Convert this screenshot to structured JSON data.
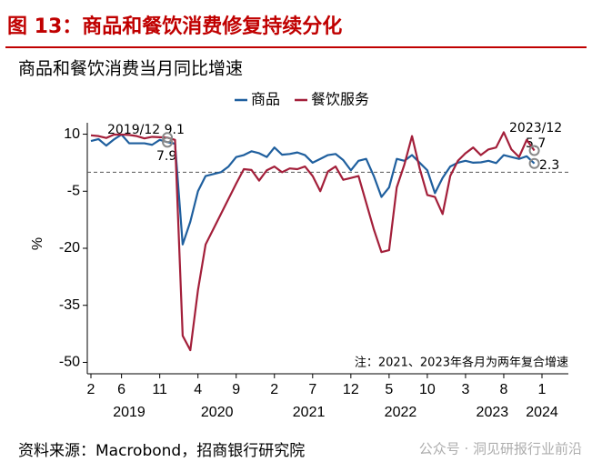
{
  "chart_data": {
    "type": "line",
    "header": "图 13：商品和餐饮消费修复持续分化",
    "title": "商品和餐饮消费当月同比增速",
    "y_label": "%",
    "note": "注：2021、2023年各月为两年复合增速",
    "source": "资料来源：Macrobond，招商银行研究院",
    "watermark": "公众号 · 洞见研报行业前沿",
    "annotations": [
      "2019/12 9.1",
      "7.9",
      "2023/12",
      "5.7",
      "2.3"
    ],
    "x": [
      "2019-02",
      "2019-03",
      "2019-04",
      "2019-05",
      "2019-06",
      "2019-07",
      "2019-08",
      "2019-09",
      "2019-10",
      "2019-11",
      "2019-12",
      "2020-01",
      "2020-02",
      "2020-03",
      "2020-04",
      "2020-05",
      "2020-06",
      "2020-07",
      "2020-08",
      "2020-09",
      "2020-10",
      "2020-11",
      "2020-12",
      "2021-01",
      "2021-02",
      "2021-03",
      "2021-04",
      "2021-05",
      "2021-06",
      "2021-07",
      "2021-08",
      "2021-09",
      "2021-10",
      "2021-11",
      "2021-12",
      "2022-01",
      "2022-02",
      "2022-03",
      "2022-04",
      "2022-05",
      "2022-06",
      "2022-07",
      "2022-08",
      "2022-09",
      "2022-10",
      "2022-11",
      "2022-12",
      "2023-01",
      "2023-02",
      "2023-03",
      "2023-04",
      "2023-05",
      "2023-06",
      "2023-07",
      "2023-08",
      "2023-09",
      "2023-10",
      "2023-11",
      "2023-12"
    ],
    "series": [
      {
        "name": "商品",
        "color": "#1f5f9e",
        "values": [
          8.2,
          8.7,
          7.0,
          8.6,
          9.9,
          7.6,
          7.6,
          7.6,
          7.2,
          8.5,
          7.9,
          7.5,
          -19.0,
          -13.0,
          -5.0,
          -1.0,
          -0.5,
          0.0,
          1.5,
          4.0,
          4.5,
          5.5,
          5.0,
          4.0,
          6.5,
          4.6,
          4.8,
          5.2,
          4.5,
          2.5,
          3.5,
          4.5,
          4.8,
          3.2,
          0.5,
          3.0,
          3.5,
          -1.0,
          -6.5,
          -4.0,
          3.5,
          3.0,
          4.5,
          2.5,
          0.5,
          -5.5,
          -1.5,
          1.5,
          2.5,
          3.0,
          2.5,
          2.6,
          3.0,
          2.4,
          4.5,
          4.0,
          3.5,
          4.2,
          2.3
        ]
      },
      {
        "name": "餐饮服务",
        "color": "#a31f3a",
        "values": [
          9.7,
          9.5,
          9.0,
          9.9,
          9.9,
          9.8,
          9.5,
          8.9,
          9.3,
          9.2,
          9.1,
          8.5,
          -43.0,
          -46.8,
          -31.0,
          -19.0,
          -15.0,
          -11.0,
          -7.0,
          -3.0,
          0.8,
          0.6,
          -2.2,
          0.5,
          1.5,
          0.0,
          1.0,
          0.8,
          1.5,
          -1.0,
          -5.0,
          0.2,
          1.5,
          -2.0,
          -1.5,
          -1.0,
          -8.0,
          -15.0,
          -21.0,
          -20.5,
          -4.0,
          2.0,
          9.5,
          1.0,
          -6.0,
          -6.5,
          -11.0,
          -1.0,
          3.0,
          5.0,
          6.5,
          4.5,
          6.0,
          6.5,
          10.5,
          6.0,
          4.0,
          8.5,
          5.7
        ]
      }
    ],
    "xlim": [
      "2019-02",
      "2024-01"
    ],
    "xticks": [
      {
        "value": "2019-02",
        "label": "2"
      },
      {
        "value": "2019-06",
        "label": "6"
      },
      {
        "value": "2019-11",
        "label": "11"
      },
      {
        "value": "2020-04",
        "label": "4"
      },
      {
        "value": "2020-09",
        "label": "9"
      },
      {
        "value": "2021-02",
        "label": "2"
      },
      {
        "value": "2021-07",
        "label": "7"
      },
      {
        "value": "2021-12",
        "label": "12"
      },
      {
        "value": "2022-05",
        "label": "5"
      },
      {
        "value": "2022-10",
        "label": "10"
      },
      {
        "value": "2023-03",
        "label": "3"
      },
      {
        "value": "2023-08",
        "label": "8"
      },
      {
        "value": "2024-01",
        "label": "1"
      }
    ],
    "x_groups": [
      "2019",
      "2020",
      "2021",
      "2022",
      "2023",
      "2024"
    ],
    "ylim": [
      -53,
      13
    ],
    "yticks": [
      10,
      -5,
      -20,
      -35,
      -50
    ],
    "reference_line": 0,
    "highlight_x": [
      "2019-12",
      "2023-12"
    ]
  }
}
